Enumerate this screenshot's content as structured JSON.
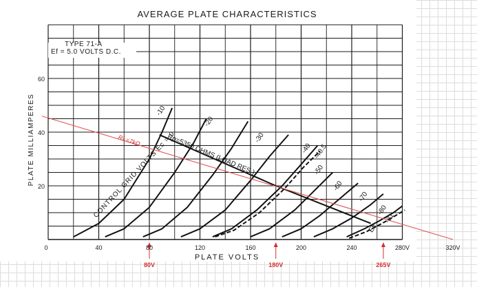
{
  "chart_data": {
    "type": "line",
    "title": "AVERAGE PLATE CHARACTERISTICS",
    "xlabel": "PLATE VOLTS",
    "ylabel": "PLATE MILLIAMPERES",
    "xlim": [
      0,
      280
    ],
    "ylim": [
      0,
      80
    ],
    "grid": true,
    "x_ticks": [
      "0",
      "40",
      "80",
      "120",
      "160",
      "200",
      "240",
      "280V",
      "320V"
    ],
    "y_ticks": [
      "20",
      "40",
      "60"
    ],
    "tube_info": [
      "TYPE 71-A",
      "Ef = 5.0 VOLTS D.C."
    ],
    "grid_voltage_label": "CONTROL GRID VOLTS Ec = 0",
    "load_line_label": "Rp=5350 OHMS (LOAD RES.)",
    "red_load_line_label": "RL=7kΩ",
    "markers": [
      {
        "label": "80V",
        "x": 80
      },
      {
        "label": "180V",
        "x": 180
      },
      {
        "label": "265V",
        "x": 265
      }
    ],
    "curve_labels": [
      {
        "text": "-10",
        "x": 88,
        "y": 46
      },
      {
        "text": "-20",
        "x": 126,
        "y": 42
      },
      {
        "text": "-30",
        "x": 166,
        "y": 36
      },
      {
        "text": "-40",
        "x": 203,
        "y": 32
      },
      {
        "text": "-40.5",
        "x": 213,
        "y": 30
      },
      {
        "text": "-50",
        "x": 213,
        "y": 24
      },
      {
        "text": "-60",
        "x": 228,
        "y": 18
      },
      {
        "text": "-70",
        "x": 248,
        "y": 14
      },
      {
        "text": "-80",
        "x": 263,
        "y": 9
      },
      {
        "text": "-81",
        "x": 269,
        "y": 6
      },
      {
        "text": "Ec",
        "x": 256,
        "y": 2.5
      }
    ],
    "series": [
      {
        "name": "Ec = 0",
        "style": "solid",
        "x": [
          20,
          40,
          60,
          80,
          90,
          98
        ],
        "y": [
          1,
          6,
          15,
          30,
          40,
          49
        ]
      },
      {
        "name": "-10",
        "style": "solid",
        "x": [
          45,
          60,
          80,
          100,
          115,
          125
        ],
        "y": [
          1,
          4,
          12,
          25,
          36,
          45
        ]
      },
      {
        "name": "-20",
        "style": "solid",
        "x": [
          75,
          90,
          110,
          130,
          145,
          158
        ],
        "y": [
          1,
          4,
          12,
          24,
          34,
          44
        ]
      },
      {
        "name": "-30",
        "style": "solid",
        "x": [
          105,
          120,
          140,
          160,
          175,
          190
        ],
        "y": [
          1,
          4,
          11,
          22,
          31,
          39
        ]
      },
      {
        "name": "-40",
        "style": "solid",
        "x": [
          130,
          145,
          165,
          185,
          200,
          213
        ],
        "y": [
          1,
          4,
          11,
          20,
          28,
          35
        ]
      },
      {
        "name": "-40.5",
        "style": "dashed",
        "x": [
          132,
          147,
          167,
          187,
          202,
          215
        ],
        "y": [
          1,
          3.5,
          10,
          19,
          27,
          33
        ]
      },
      {
        "name": "-50",
        "style": "solid",
        "x": [
          160,
          175,
          195,
          210,
          225
        ],
        "y": [
          1,
          4,
          11,
          18,
          25
        ]
      },
      {
        "name": "-60",
        "style": "solid",
        "x": [
          185,
          200,
          215,
          230,
          245
        ],
        "y": [
          1,
          4,
          9,
          15,
          21
        ]
      },
      {
        "name": "-70",
        "style": "solid",
        "x": [
          210,
          225,
          240,
          255,
          265
        ],
        "y": [
          1,
          4,
          8,
          13,
          17
        ]
      },
      {
        "name": "-80",
        "style": "solid",
        "x": [
          236,
          250,
          262,
          273,
          280
        ],
        "y": [
          1,
          4,
          7,
          10,
          12.5
        ]
      },
      {
        "name": "-81",
        "style": "dashed",
        "x": [
          238,
          252,
          264,
          275,
          282
        ],
        "y": [
          0.5,
          3,
          6,
          9,
          11
        ]
      },
      {
        "name": "Rp=5350 OHMS",
        "style": "solid",
        "x": [
          88,
          180,
          255
        ],
        "y": [
          39,
          20,
          6
        ]
      },
      {
        "name": "RL=7kΩ",
        "style": "red",
        "x": [
          -5,
          320
        ],
        "y": [
          46,
          0
        ]
      }
    ]
  }
}
